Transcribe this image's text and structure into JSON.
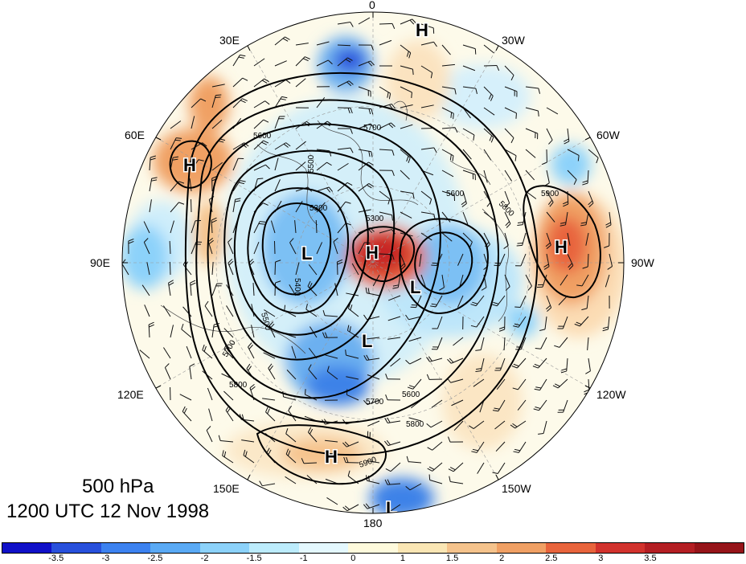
{
  "map": {
    "longitude_labels": [
      {
        "text": "0",
        "lon": 0
      },
      {
        "text": "30W",
        "lon": -30
      },
      {
        "text": "60W",
        "lon": -60
      },
      {
        "text": "90W",
        "lon": -90
      },
      {
        "text": "120W",
        "lon": -120
      },
      {
        "text": "150W",
        "lon": -150
      },
      {
        "text": "180",
        "lon": 180
      },
      {
        "text": "150E",
        "lon": 150
      },
      {
        "text": "120E",
        "lon": 120
      },
      {
        "text": "90E",
        "lon": 90
      },
      {
        "text": "60E",
        "lon": 60
      },
      {
        "text": "30E",
        "lon": 30
      }
    ],
    "pressure_centers": [
      {
        "type": "H",
        "label": "H"
      },
      {
        "type": "H",
        "label": "H"
      },
      {
        "type": "H",
        "label": "H"
      },
      {
        "type": "H",
        "label": "H"
      },
      {
        "type": "H",
        "label": "H"
      },
      {
        "type": "L",
        "label": "L"
      },
      {
        "type": "L",
        "label": "L"
      },
      {
        "type": "L",
        "label": "L"
      },
      {
        "type": "L",
        "label": "L"
      }
    ],
    "contour_labels": [
      "5300",
      "5300",
      "5400",
      "5500",
      "5500",
      "5600",
      "5600",
      "5600",
      "5700",
      "5700",
      "5700",
      "5800",
      "5800",
      "5800",
      "5900",
      "5900"
    ]
  },
  "title": {
    "level": "500 hPa",
    "time": "1200 UTC 12 Nov 1998"
  },
  "colorbar": {
    "colors": [
      "#1010c8",
      "#2850dc",
      "#3c82f0",
      "#5aaaf5",
      "#8cd2fa",
      "#bcecfc",
      "#e4f8fe",
      "#fefadc",
      "#fae6b4",
      "#f5c38c",
      "#f0a064",
      "#e8643c",
      "#d2322d",
      "#b41e23",
      "#961419"
    ],
    "tick_labels": [
      "-3.5",
      "-3",
      "-2.5",
      "-2",
      "-1.5",
      "-1",
      "0",
      "1",
      "1.5",
      "2",
      "2.5",
      "3",
      "3.5"
    ]
  }
}
